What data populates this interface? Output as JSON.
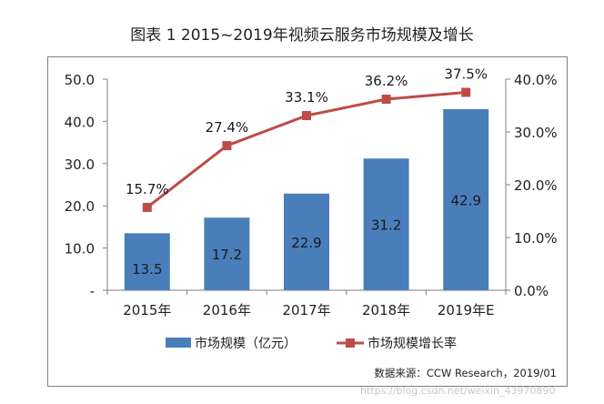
{
  "title": "图表 1 2015~2019年视频云服务市场规模及增长",
  "chart_data": {
    "type": "bar",
    "categories": [
      "2015年",
      "2016年",
      "2017年",
      "2018年",
      "2019年E"
    ],
    "series": [
      {
        "name": "市场规模（亿元）",
        "type": "bar",
        "axis": "left",
        "values": [
          13.5,
          17.2,
          22.9,
          31.2,
          42.9
        ],
        "labels": [
          "13.5",
          "17.2",
          "22.9",
          "31.2",
          "42.9"
        ],
        "color": "#4a7ebb"
      },
      {
        "name": "市场规模增长率",
        "type": "line",
        "axis": "right",
        "values": [
          15.7,
          27.4,
          33.1,
          36.2,
          37.5
        ],
        "labels": [
          "15.7%",
          "27.4%",
          "33.1%",
          "36.2%",
          "37.5%"
        ],
        "color": "#be4b48"
      }
    ],
    "y_left": {
      "lim": [
        0,
        50
      ],
      "ticks": [
        0,
        10,
        20,
        30,
        40,
        50
      ],
      "tick_labels": [
        "-",
        "10.0",
        "20.0",
        "30.0",
        "40.0",
        "50.0"
      ]
    },
    "y_right": {
      "lim": [
        0,
        40
      ],
      "ticks": [
        0,
        10,
        20,
        30,
        40
      ],
      "tick_labels": [
        "0.0%",
        "10.0%",
        "20.0%",
        "30.0%",
        "40.0%"
      ]
    },
    "grid": false,
    "legend_position": "bottom",
    "source": "数据来源：CCW Research，2019/01"
  },
  "watermark": "https://blog.csdn.net/weixin_43970890"
}
